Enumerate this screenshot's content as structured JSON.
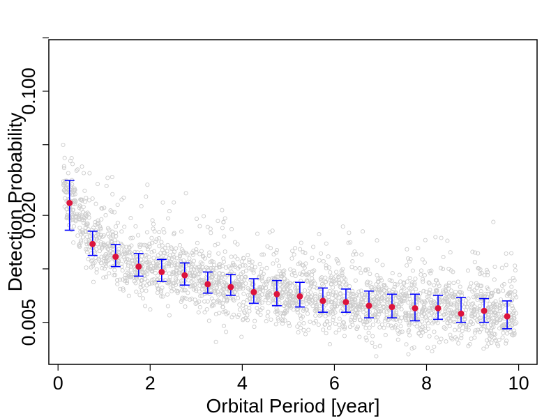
{
  "chart_data": {
    "type": "scatter",
    "title": "",
    "xlabel": "Orbital Period [year]",
    "ylabel": "Detection Probability",
    "xlim": [
      -0.2,
      10.4
    ],
    "ylim": [
      0.0029,
      0.195
    ],
    "yscale": "log",
    "x_ticks": [
      0,
      2,
      4,
      6,
      8,
      10
    ],
    "x_tick_labels": [
      "0",
      "2",
      "4",
      "6",
      "8",
      "10"
    ],
    "y_ticks": [
      0.005,
      0.01,
      0.02,
      0.05,
      0.1,
      0.2
    ],
    "y_tick_labels": [
      "0.005",
      "",
      "0.020",
      "",
      "0.100",
      ""
    ],
    "scatter_series": {
      "name": "individual systems",
      "color": "#cccccc",
      "count": 2400,
      "x_range": [
        0.1,
        9.95
      ],
      "description_trend": "follows binned means"
    },
    "binned_series": {
      "name": "binned mean",
      "point_color": "#dc143c",
      "errorbar_color": "#0000ff",
      "x": [
        0.25,
        0.75,
        1.25,
        1.75,
        2.25,
        2.75,
        3.25,
        3.75,
        4.25,
        4.75,
        5.25,
        5.75,
        6.25,
        6.75,
        7.25,
        7.75,
        8.25,
        8.75,
        9.25,
        9.75
      ],
      "y": [
        0.0235,
        0.0138,
        0.0117,
        0.0103,
        0.0096,
        0.0092,
        0.0082,
        0.0079,
        0.0074,
        0.0072,
        0.007,
        0.0066,
        0.0065,
        0.0062,
        0.0061,
        0.006,
        0.006,
        0.0056,
        0.0058,
        0.0054
      ],
      "y_low": [
        0.0165,
        0.0119,
        0.0103,
        0.0091,
        0.0085,
        0.0081,
        0.0073,
        0.0071,
        0.0064,
        0.0062,
        0.0061,
        0.0057,
        0.0057,
        0.0053,
        0.0053,
        0.0051,
        0.0052,
        0.005,
        0.005,
        0.0046
      ],
      "y_high": [
        0.0315,
        0.0163,
        0.0137,
        0.0122,
        0.0113,
        0.0108,
        0.0096,
        0.0093,
        0.0088,
        0.0086,
        0.0084,
        0.0078,
        0.0077,
        0.0075,
        0.0072,
        0.0072,
        0.0071,
        0.0069,
        0.0068,
        0.0066
      ]
    }
  }
}
